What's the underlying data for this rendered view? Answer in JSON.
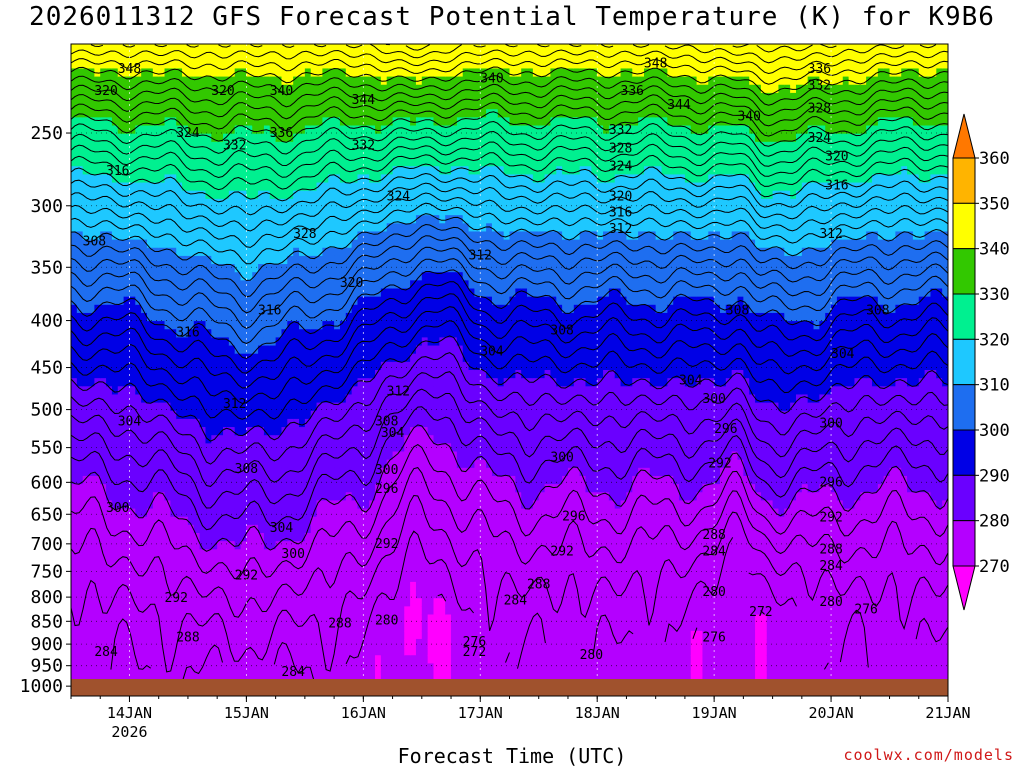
{
  "chart_data": {
    "type": "heatmap",
    "title": "2026011312 GFS Forecast Potential Temperature (K) for K9B6",
    "xlabel": "Forecast Time (UTC)",
    "ylabel": "",
    "units": "K",
    "y_axis": {
      "ticks": [
        "250",
        "300",
        "350",
        "400",
        "450",
        "500",
        "550",
        "600",
        "650",
        "700",
        "750",
        "800",
        "850",
        "900",
        "950",
        "1000"
      ],
      "range": [
        200,
        1025
      ],
      "scale": "log-pressure"
    },
    "x_axis": {
      "ticks": [
        "14JAN",
        "15JAN",
        "16JAN",
        "17JAN",
        "18JAN",
        "19JAN",
        "20JAN",
        "21JAN"
      ],
      "sublabel": "2026",
      "range_days": [
        13.5,
        21.0
      ]
    },
    "grid": "dotted",
    "colorbar": {
      "levels": [
        "270",
        "280",
        "290",
        "300",
        "310",
        "320",
        "330",
        "340",
        "350",
        "360"
      ],
      "colors": [
        "#ff00ff",
        "#b400ff",
        "#6a00ff",
        "#0000e6",
        "#1e6ef0",
        "#1ec8ff",
        "#00f090",
        "#32c800",
        "#ffff00",
        "#ffb400",
        "#ff7800"
      ]
    },
    "contour_labels": [
      {
        "text": "348",
        "x": 14.0,
        "p": 213
      },
      {
        "text": "320",
        "x": 13.8,
        "p": 225
      },
      {
        "text": "320",
        "x": 14.8,
        "p": 225
      },
      {
        "text": "340",
        "x": 15.3,
        "p": 225
      },
      {
        "text": "344",
        "x": 16.0,
        "p": 230
      },
      {
        "text": "340",
        "x": 17.1,
        "p": 218
      },
      {
        "text": "348",
        "x": 18.5,
        "p": 210
      },
      {
        "text": "336",
        "x": 18.3,
        "p": 225
      },
      {
        "text": "344",
        "x": 18.7,
        "p": 233
      },
      {
        "text": "340",
        "x": 19.3,
        "p": 240
      },
      {
        "text": "336",
        "x": 19.9,
        "p": 213
      },
      {
        "text": "332",
        "x": 19.9,
        "p": 222
      },
      {
        "text": "328",
        "x": 19.9,
        "p": 235
      },
      {
        "text": "324",
        "x": 14.5,
        "p": 250
      },
      {
        "text": "332",
        "x": 14.9,
        "p": 258
      },
      {
        "text": "336",
        "x": 15.3,
        "p": 250
      },
      {
        "text": "332",
        "x": 16.0,
        "p": 258
      },
      {
        "text": "332",
        "x": 18.2,
        "p": 248
      },
      {
        "text": "328",
        "x": 18.2,
        "p": 260
      },
      {
        "text": "324",
        "x": 18.2,
        "p": 272
      },
      {
        "text": "324",
        "x": 19.9,
        "p": 253
      },
      {
        "text": "320",
        "x": 20.05,
        "p": 265
      },
      {
        "text": "316",
        "x": 13.9,
        "p": 275
      },
      {
        "text": "316",
        "x": 20.05,
        "p": 285
      },
      {
        "text": "324",
        "x": 16.3,
        "p": 293
      },
      {
        "text": "320",
        "x": 18.2,
        "p": 293
      },
      {
        "text": "316",
        "x": 18.2,
        "p": 305
      },
      {
        "text": "312",
        "x": 18.2,
        "p": 318
      },
      {
        "text": "312",
        "x": 20.0,
        "p": 322
      },
      {
        "text": "308",
        "x": 13.7,
        "p": 328
      },
      {
        "text": "328",
        "x": 15.5,
        "p": 322
      },
      {
        "text": "312",
        "x": 17.0,
        "p": 340
      },
      {
        "text": "320",
        "x": 15.9,
        "p": 364
      },
      {
        "text": "308",
        "x": 19.2,
        "p": 390
      },
      {
        "text": "308",
        "x": 20.4,
        "p": 390
      },
      {
        "text": "316",
        "x": 15.2,
        "p": 390
      },
      {
        "text": "316",
        "x": 14.5,
        "p": 412
      },
      {
        "text": "308",
        "x": 17.7,
        "p": 410
      },
      {
        "text": "304",
        "x": 17.1,
        "p": 432
      },
      {
        "text": "304",
        "x": 20.1,
        "p": 435
      },
      {
        "text": "304",
        "x": 18.8,
        "p": 465
      },
      {
        "text": "312",
        "x": 16.3,
        "p": 478
      },
      {
        "text": "300",
        "x": 19.0,
        "p": 487
      },
      {
        "text": "312",
        "x": 14.9,
        "p": 493
      },
      {
        "text": "304",
        "x": 14.0,
        "p": 515
      },
      {
        "text": "296",
        "x": 19.1,
        "p": 525
      },
      {
        "text": "308",
        "x": 16.2,
        "p": 515
      },
      {
        "text": "300",
        "x": 20.0,
        "p": 518
      },
      {
        "text": "304",
        "x": 16.25,
        "p": 530
      },
      {
        "text": "300",
        "x": 17.7,
        "p": 564
      },
      {
        "text": "292",
        "x": 19.05,
        "p": 572
      },
      {
        "text": "308",
        "x": 15.0,
        "p": 580
      },
      {
        "text": "300",
        "x": 16.2,
        "p": 582
      },
      {
        "text": "296",
        "x": 20.0,
        "p": 600
      },
      {
        "text": "296",
        "x": 16.2,
        "p": 610
      },
      {
        "text": "300",
        "x": 13.9,
        "p": 640
      },
      {
        "text": "296",
        "x": 17.8,
        "p": 654
      },
      {
        "text": "292",
        "x": 20.0,
        "p": 655
      },
      {
        "text": "304",
        "x": 15.3,
        "p": 673
      },
      {
        "text": "288",
        "x": 19.0,
        "p": 685
      },
      {
        "text": "292",
        "x": 16.2,
        "p": 700
      },
      {
        "text": "288",
        "x": 20.0,
        "p": 710
      },
      {
        "text": "300",
        "x": 15.4,
        "p": 718
      },
      {
        "text": "284",
        "x": 19.0,
        "p": 714
      },
      {
        "text": "292",
        "x": 17.7,
        "p": 714
      },
      {
        "text": "284",
        "x": 20.0,
        "p": 740
      },
      {
        "text": "292",
        "x": 15.0,
        "p": 758
      },
      {
        "text": "288",
        "x": 17.5,
        "p": 775
      },
      {
        "text": "280",
        "x": 19.0,
        "p": 790
      },
      {
        "text": "292",
        "x": 14.4,
        "p": 802
      },
      {
        "text": "284",
        "x": 17.3,
        "p": 807
      },
      {
        "text": "280",
        "x": 20.0,
        "p": 810
      },
      {
        "text": "276",
        "x": 20.3,
        "p": 825
      },
      {
        "text": "272",
        "x": 19.4,
        "p": 830
      },
      {
        "text": "288",
        "x": 15.8,
        "p": 855
      },
      {
        "text": "280",
        "x": 16.2,
        "p": 848
      },
      {
        "text": "276",
        "x": 16.95,
        "p": 895
      },
      {
        "text": "288",
        "x": 14.5,
        "p": 885
      },
      {
        "text": "276",
        "x": 19.0,
        "p": 885
      },
      {
        "text": "272",
        "x": 16.95,
        "p": 918
      },
      {
        "text": "284",
        "x": 13.8,
        "p": 918
      },
      {
        "text": "280",
        "x": 17.95,
        "p": 925
      },
      {
        "text": "284",
        "x": 15.4,
        "p": 965
      }
    ]
  },
  "credit": "coolwx.com/models"
}
